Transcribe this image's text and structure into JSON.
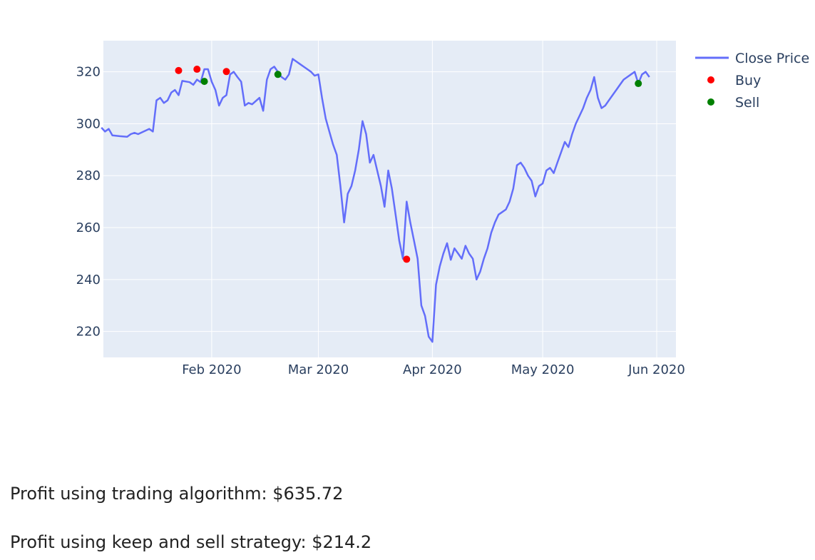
{
  "chart_data": {
    "type": "line",
    "xlim": [
      "2020-01-01",
      "2020-06-01"
    ],
    "ylim": [
      210,
      332
    ],
    "x_ticks": [
      {
        "date": "2020-02-01",
        "label": "Feb 2020"
      },
      {
        "date": "2020-03-01",
        "label": "Mar 2020"
      },
      {
        "date": "2020-04-01",
        "label": "Apr 2020"
      },
      {
        "date": "2020-05-01",
        "label": "May 2020"
      },
      {
        "date": "2020-06-01",
        "label": "Jun 2020"
      }
    ],
    "y_ticks": [
      {
        "value": 220,
        "label": "220"
      },
      {
        "value": 240,
        "label": "240"
      },
      {
        "value": 260,
        "label": "260"
      },
      {
        "value": 280,
        "label": "280"
      },
      {
        "value": 300,
        "label": "300"
      },
      {
        "value": 320,
        "label": "320"
      }
    ],
    "grid": true,
    "legend_position": "top-right",
    "background_color": "#e5ecf6",
    "series": [
      {
        "name": "Close Price",
        "mode": "line",
        "color": "#636efa",
        "points": [
          [
            "2020-01-02",
            298.5
          ],
          [
            "2020-01-03",
            297
          ],
          [
            "2020-01-04",
            298
          ],
          [
            "2020-01-05",
            295.5
          ],
          [
            "2020-01-07",
            295.2
          ],
          [
            "2020-01-09",
            295
          ],
          [
            "2020-01-10",
            296
          ],
          [
            "2020-01-11",
            296.5
          ],
          [
            "2020-01-12",
            296
          ],
          [
            "2020-01-15",
            298
          ],
          [
            "2020-01-16",
            297
          ],
          [
            "2020-01-17",
            309
          ],
          [
            "2020-01-18",
            310
          ],
          [
            "2020-01-19",
            308
          ],
          [
            "2020-01-20",
            309
          ],
          [
            "2020-01-21",
            312
          ],
          [
            "2020-01-22",
            313
          ],
          [
            "2020-01-23",
            311
          ],
          [
            "2020-01-24",
            316.5
          ],
          [
            "2020-01-26",
            316
          ],
          [
            "2020-01-27",
            315
          ],
          [
            "2020-01-28",
            317
          ],
          [
            "2020-01-29",
            316
          ],
          [
            "2020-01-30",
            321
          ],
          [
            "2020-01-31",
            321
          ],
          [
            "2020-02-01",
            316.2
          ],
          [
            "2020-02-02",
            313
          ],
          [
            "2020-02-03",
            307
          ],
          [
            "2020-02-04",
            310
          ],
          [
            "2020-02-05",
            311
          ],
          [
            "2020-02-06",
            319
          ],
          [
            "2020-02-07",
            320
          ],
          [
            "2020-02-08",
            318
          ],
          [
            "2020-02-09",
            316.2
          ],
          [
            "2020-02-10",
            307
          ],
          [
            "2020-02-11",
            308
          ],
          [
            "2020-02-12",
            307.5
          ],
          [
            "2020-02-14",
            310
          ],
          [
            "2020-02-15",
            305
          ],
          [
            "2020-02-16",
            317
          ],
          [
            "2020-02-17",
            321
          ],
          [
            "2020-02-18",
            322
          ],
          [
            "2020-02-19",
            320
          ],
          [
            "2020-02-20",
            318
          ],
          [
            "2020-02-21",
            317
          ],
          [
            "2020-02-22",
            319
          ],
          [
            "2020-02-23",
            325
          ],
          [
            "2020-02-24",
            324
          ],
          [
            "2020-02-25",
            323
          ],
          [
            "2020-02-26",
            322
          ],
          [
            "2020-02-27",
            321
          ],
          [
            "2020-02-28",
            320
          ],
          [
            "2020-02-29",
            318.5
          ],
          [
            "2020-03-01",
            319
          ],
          [
            "2020-03-02",
            310
          ],
          [
            "2020-03-03",
            302
          ],
          [
            "2020-03-04",
            297
          ],
          [
            "2020-03-05",
            292
          ],
          [
            "2020-03-06",
            288
          ],
          [
            "2020-03-07",
            276
          ],
          [
            "2020-03-08",
            262
          ],
          [
            "2020-03-09",
            273
          ],
          [
            "2020-03-10",
            276
          ],
          [
            "2020-03-11",
            282
          ],
          [
            "2020-03-12",
            290
          ],
          [
            "2020-03-13",
            301
          ],
          [
            "2020-03-14",
            296
          ],
          [
            "2020-03-15",
            285
          ],
          [
            "2020-03-16",
            288
          ],
          [
            "2020-03-17",
            282
          ],
          [
            "2020-03-18",
            276
          ],
          [
            "2020-03-19",
            268
          ],
          [
            "2020-03-20",
            282
          ],
          [
            "2020-03-21",
            275
          ],
          [
            "2020-03-22",
            265
          ],
          [
            "2020-03-23",
            255
          ],
          [
            "2020-03-24",
            248
          ],
          [
            "2020-03-25",
            270
          ],
          [
            "2020-03-26",
            262
          ],
          [
            "2020-03-27",
            255
          ],
          [
            "2020-03-28",
            248
          ],
          [
            "2020-03-29",
            230
          ],
          [
            "2020-03-30",
            226
          ],
          [
            "2020-03-31",
            218
          ],
          [
            "2020-04-01",
            216
          ],
          [
            "2020-04-02",
            238
          ],
          [
            "2020-04-03",
            245
          ],
          [
            "2020-04-04",
            250
          ],
          [
            "2020-04-05",
            254
          ],
          [
            "2020-04-06",
            247.6
          ],
          [
            "2020-04-07",
            252
          ],
          [
            "2020-04-08",
            250
          ],
          [
            "2020-04-09",
            248
          ],
          [
            "2020-04-10",
            253
          ],
          [
            "2020-04-11",
            250
          ],
          [
            "2020-04-12",
            248
          ],
          [
            "2020-04-13",
            240
          ],
          [
            "2020-04-14",
            243
          ],
          [
            "2020-04-15",
            248
          ],
          [
            "2020-04-16",
            252
          ],
          [
            "2020-04-17",
            258
          ],
          [
            "2020-04-18",
            262
          ],
          [
            "2020-04-19",
            265
          ],
          [
            "2020-04-20",
            266
          ],
          [
            "2020-04-21",
            267
          ],
          [
            "2020-04-22",
            270
          ],
          [
            "2020-04-23",
            275
          ],
          [
            "2020-04-24",
            284
          ],
          [
            "2020-04-25",
            285
          ],
          [
            "2020-04-26",
            283
          ],
          [
            "2020-04-27",
            280
          ],
          [
            "2020-04-28",
            278
          ],
          [
            "2020-04-29",
            272
          ],
          [
            "2020-04-30",
            276
          ],
          [
            "2020-05-01",
            277
          ],
          [
            "2020-05-02",
            282
          ],
          [
            "2020-05-03",
            283
          ],
          [
            "2020-05-04",
            281
          ],
          [
            "2020-05-05",
            285
          ],
          [
            "2020-05-06",
            289
          ],
          [
            "2020-05-07",
            293
          ],
          [
            "2020-05-08",
            291
          ],
          [
            "2020-05-09",
            296
          ],
          [
            "2020-05-10",
            300
          ],
          [
            "2020-05-11",
            303
          ],
          [
            "2020-05-12",
            306
          ],
          [
            "2020-05-13",
            310
          ],
          [
            "2020-05-14",
            313
          ],
          [
            "2020-05-15",
            318
          ],
          [
            "2020-05-16",
            310
          ],
          [
            "2020-05-17",
            306
          ],
          [
            "2020-05-18",
            307
          ],
          [
            "2020-05-19",
            309
          ],
          [
            "2020-05-20",
            311
          ],
          [
            "2020-05-21",
            313
          ],
          [
            "2020-05-22",
            315
          ],
          [
            "2020-05-23",
            317
          ],
          [
            "2020-05-24",
            318
          ],
          [
            "2020-05-25",
            319
          ],
          [
            "2020-05-26",
            320
          ],
          [
            "2020-05-27",
            315.5
          ],
          [
            "2020-05-28",
            319
          ],
          [
            "2020-05-29",
            320
          ],
          [
            "2020-05-30",
            318
          ]
        ]
      },
      {
        "name": "Buy",
        "mode": "markers",
        "color": "#ff0000",
        "points": [
          [
            "2020-01-23",
            320.5
          ],
          [
            "2020-01-28",
            321
          ],
          [
            "2020-02-05",
            320.1
          ],
          [
            "2020-03-25",
            247.8
          ]
        ]
      },
      {
        "name": "Sell",
        "mode": "markers",
        "color": "#008000",
        "points": [
          [
            "2020-01-30",
            316.3
          ],
          [
            "2020-02-19",
            319
          ],
          [
            "2020-05-27",
            315.5
          ]
        ]
      }
    ]
  },
  "results": {
    "algorithm_profit": "Profit using trading algorithm: $635.72",
    "keep_sell_profit": "Profit using keep and sell strategy: $214.2"
  }
}
